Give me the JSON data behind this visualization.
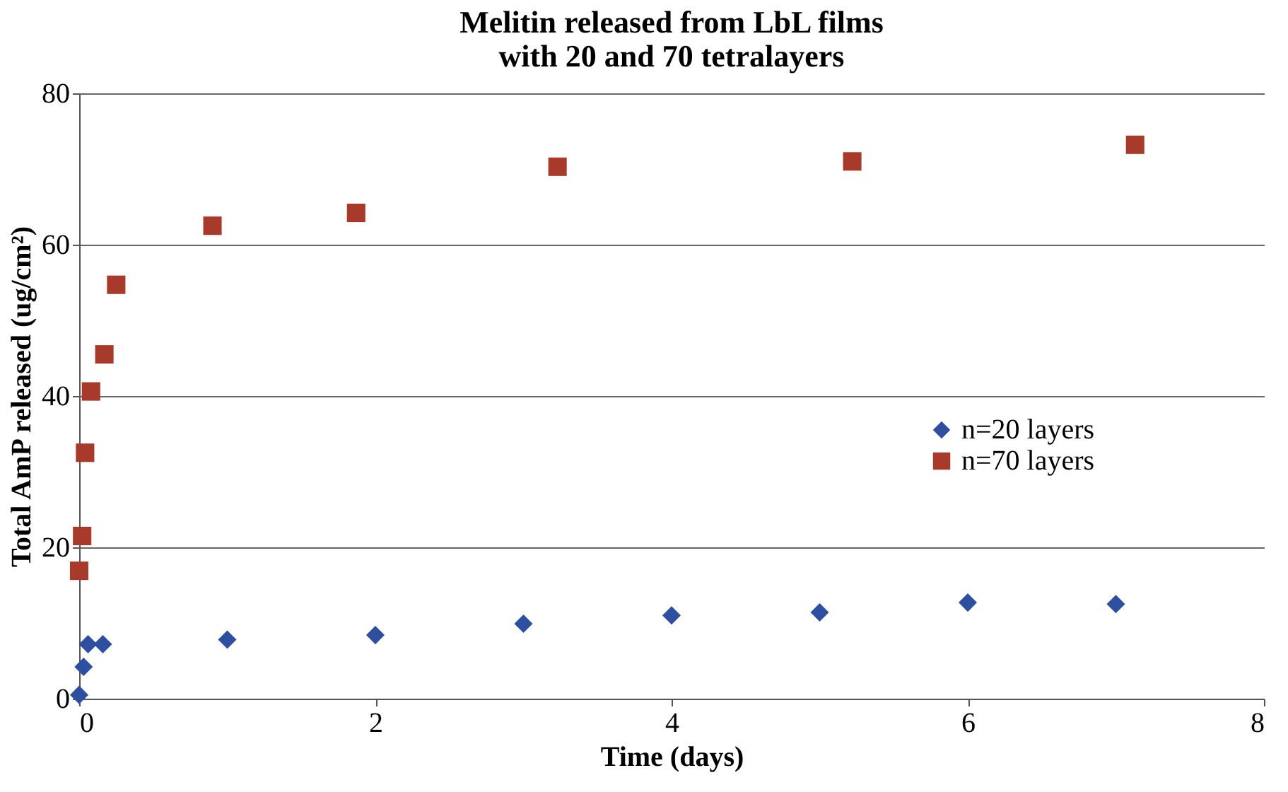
{
  "chart_data": {
    "type": "scatter",
    "title": [
      "Melitin released from LbL films",
      "with 20 and 70 tetralayers"
    ],
    "xlabel": "Time (days)",
    "ylabel": "Total AmP released (ug/cm²)",
    "xlim": [
      0,
      8
    ],
    "xticks": [
      0,
      2,
      4,
      6,
      8
    ],
    "ylim": [
      0,
      80
    ],
    "yticks": [
      0,
      20,
      40,
      60,
      80
    ],
    "grid": "y",
    "legend": "right",
    "series": [
      {
        "name": "n=20 layers",
        "color": "#2e4fa0",
        "marker": "diamond",
        "x": [
          0,
          0.03,
          0.06,
          0.16,
          1,
          2,
          3,
          4,
          5,
          6,
          7
        ],
        "values": [
          0.5,
          4.2,
          7.2,
          7.2,
          7.8,
          8.4,
          9.9,
          11,
          11.4,
          12.7,
          12.5
        ]
      },
      {
        "name": "n=70 layers",
        "color": "#a83a2c",
        "marker": "square",
        "x": [
          0,
          0.02,
          0.04,
          0.08,
          0.17,
          0.25,
          0.9,
          1.87,
          3.23,
          5.22,
          7.13
        ],
        "values": [
          16.9,
          21.5,
          32.5,
          40.6,
          45.5,
          54.7,
          62.5,
          64.2,
          70.3,
          71,
          73.2
        ]
      }
    ]
  }
}
